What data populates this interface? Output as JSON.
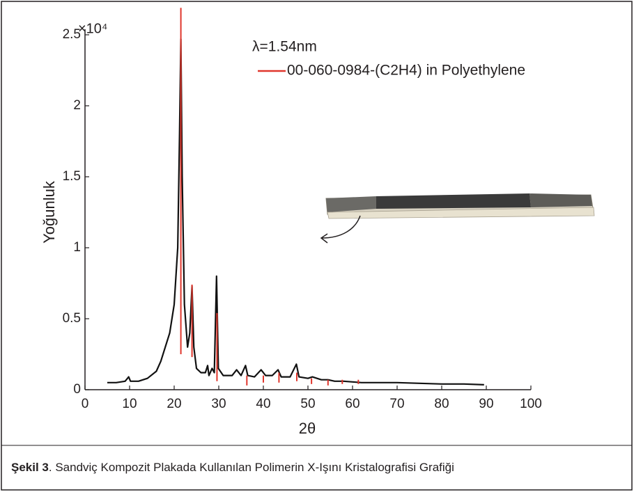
{
  "chart_data": {
    "type": "line",
    "y_label": "Yoğunluk",
    "x_label": "2θ",
    "y_multiplier": "×10⁴",
    "annotation": "λ=1.54nm",
    "caption_label": "Şekil 3",
    "caption_text": ". Sandviç Kompozit Plakada Kullanılan Polimerin X-Işını Kristalografisi Grafiği",
    "xlim": [
      0,
      100
    ],
    "xticks": [
      0,
      10,
      20,
      30,
      40,
      50,
      60,
      70,
      80,
      90,
      100
    ],
    "ylim": [
      0,
      2.5
    ],
    "yticks": [
      0,
      0.5,
      1,
      1.5,
      2,
      2.5
    ],
    "series": [
      {
        "color": "#111111",
        "x": [
          5,
          7,
          9,
          9.8,
          10.2,
          12,
          14,
          16,
          17,
          18,
          19,
          20,
          20.8,
          21.2,
          21.5,
          21.8,
          22.3,
          23,
          23.5,
          24,
          24.4,
          25,
          26,
          27,
          27.5,
          27.8,
          28.5,
          29,
          29.5,
          29.9,
          31,
          33,
          34,
          35,
          36,
          36.5,
          38,
          39.5,
          40.5,
          42,
          43.3,
          44,
          46,
          47.4,
          48,
          50,
          51,
          53,
          54.5,
          56,
          58,
          60,
          62,
          65,
          70,
          75,
          80,
          85,
          89.5
        ],
        "values": [
          0.05,
          0.05,
          0.06,
          0.09,
          0.06,
          0.06,
          0.08,
          0.13,
          0.2,
          0.3,
          0.4,
          0.6,
          1.0,
          1.8,
          2.47,
          1.5,
          0.6,
          0.3,
          0.4,
          0.73,
          0.3,
          0.15,
          0.12,
          0.12,
          0.17,
          0.1,
          0.15,
          0.12,
          0.8,
          0.15,
          0.1,
          0.1,
          0.14,
          0.1,
          0.17,
          0.1,
          0.09,
          0.14,
          0.1,
          0.1,
          0.14,
          0.09,
          0.09,
          0.18,
          0.09,
          0.08,
          0.09,
          0.07,
          0.07,
          0.06,
          0.06,
          0.055,
          0.05,
          0.05,
          0.05,
          0.045,
          0.04,
          0.04,
          0.035
        ]
      }
    ],
    "references": {
      "name": "00-060-0984-(C2H4) in Polyethylene",
      "color": "#e0362c",
      "x": [
        21.5,
        24.0,
        29.6,
        36.3,
        40.0,
        43.5,
        47.5,
        50.8,
        54.5,
        57.7,
        61.3
      ],
      "values": [
        2.69,
        0.74,
        0.54,
        0.1,
        0.1,
        0.12,
        0.12,
        0.08,
        0.07,
        0.07,
        0.07
      ],
      "bottoms": [
        0.25,
        0.23,
        0.06,
        0.03,
        0.05,
        0.05,
        0.06,
        0.04,
        0.03,
        0.04,
        0.04
      ]
    }
  }
}
